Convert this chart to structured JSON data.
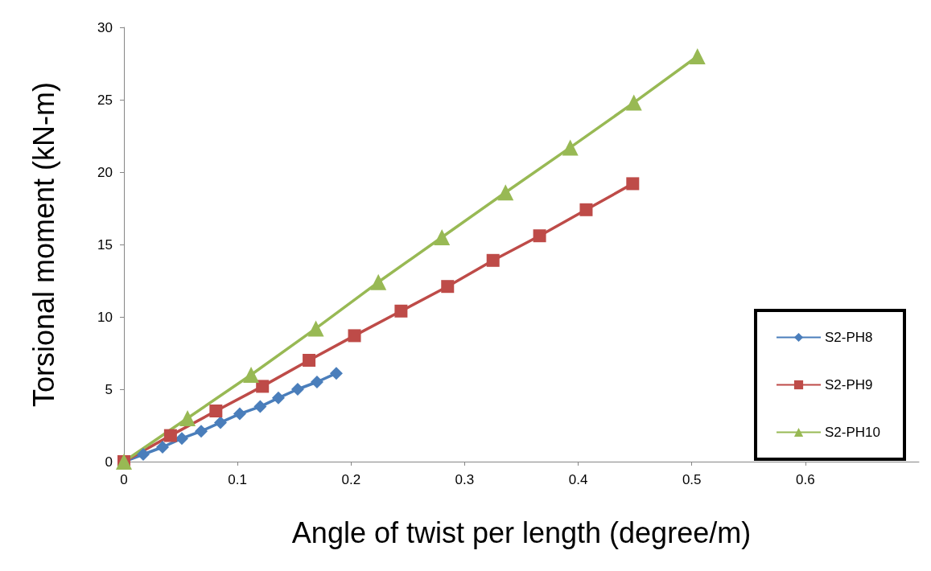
{
  "chart_data": {
    "type": "line",
    "xlabel": "Angle of twist per length (degree/m)",
    "ylabel": "Torsional moment (kN-m)",
    "xlim": [
      0,
      0.7
    ],
    "xticks": [
      0,
      0.1,
      0.2,
      0.3,
      0.4,
      0.5,
      0.6
    ],
    "ylim": [
      0,
      30
    ],
    "yticks": [
      0,
      5,
      10,
      15,
      20,
      25,
      30
    ],
    "grid": false,
    "legend": "right",
    "series": [
      {
        "name": "S2-PH8",
        "color": "#4a7ebb",
        "marker": "diamond",
        "x": [
          0,
          0.017,
          0.034,
          0.051,
          0.068,
          0.085,
          0.102,
          0.12,
          0.136,
          0.153,
          0.17,
          0.187
        ],
        "values": [
          0,
          0.5,
          1.0,
          1.6,
          2.1,
          2.7,
          3.3,
          3.8,
          4.4,
          5.0,
          5.5,
          6.1
        ]
      },
      {
        "name": "S2-PH9",
        "color": "#be4b48",
        "marker": "square",
        "x": [
          0,
          0.041,
          0.081,
          0.122,
          0.163,
          0.203,
          0.244,
          0.285,
          0.325,
          0.366,
          0.407,
          0.448
        ],
        "values": [
          0,
          1.8,
          3.5,
          5.2,
          7.0,
          8.7,
          10.4,
          12.1,
          13.9,
          15.6,
          17.4,
          19.2
        ]
      },
      {
        "name": "S2-PH10",
        "color": "#98b954",
        "marker": "triangle",
        "x": [
          0,
          0.056,
          0.112,
          0.169,
          0.224,
          0.28,
          0.336,
          0.393,
          0.449,
          0.505
        ],
        "values": [
          0,
          3.0,
          6.0,
          9.2,
          12.4,
          15.5,
          18.6,
          21.7,
          24.8,
          28.0
        ]
      }
    ]
  }
}
